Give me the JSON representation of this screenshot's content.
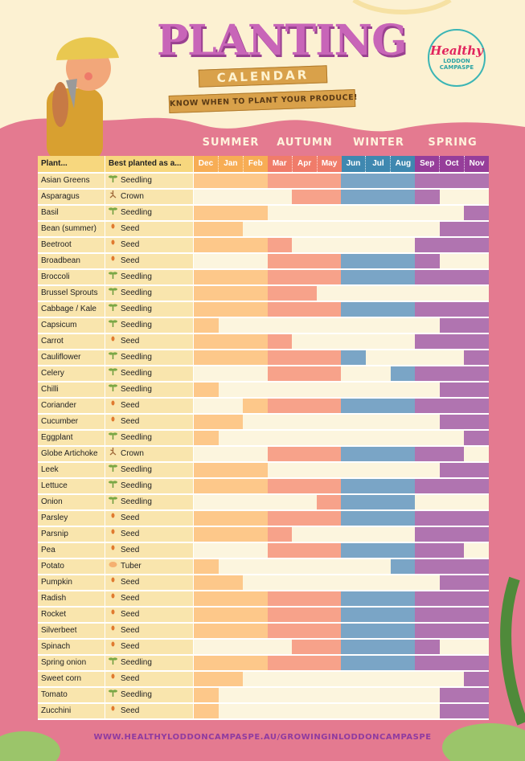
{
  "header": {
    "title": "PLANTING",
    "subtitle": "CALENDAR",
    "tagline": "KNOW WHEN TO PLANT YOUR PRODUCE!"
  },
  "logo": {
    "script": "Healthy",
    "line1": "LODDON",
    "line2": "CAMPASPE"
  },
  "table": {
    "col_plant": "Plant...",
    "col_type": "Best planted as a...",
    "seasons": [
      {
        "name": "SUMMER",
        "months": [
          "Dec",
          "Jan",
          "Feb"
        ],
        "header_color": "#f7ad55",
        "bar_color": "#fdc88a"
      },
      {
        "name": "AUTUMN",
        "months": [
          "Mar",
          "Apr",
          "May"
        ],
        "header_color": "#f07c6a",
        "bar_color": "#f7a28a"
      },
      {
        "name": "WINTER",
        "months": [
          "Jun",
          "Jul",
          "Aug"
        ],
        "header_color": "#3f88b0",
        "bar_color": "#7aa5c6"
      },
      {
        "name": "SPRING",
        "months": [
          "Sep",
          "Oct",
          "Nov"
        ],
        "header_color": "#963e9a",
        "bar_color": "#b074b0"
      }
    ],
    "type_icons": {
      "Seedling": "seedling-icon",
      "Seed": "seed-icon",
      "Crown": "crown-root-icon",
      "Tuber": "tuber-icon"
    },
    "plants": [
      {
        "name": "Asian Greens",
        "type": "Seedling",
        "months": [
          "Dec",
          "Jan",
          "Feb",
          "Mar",
          "Apr",
          "May",
          "Jun",
          "Jul",
          "Aug",
          "Sep",
          "Oct",
          "Nov"
        ]
      },
      {
        "name": "Asparagus",
        "type": "Crown",
        "months": [
          "Apr",
          "May",
          "Jun",
          "Jul",
          "Aug",
          "Sep"
        ]
      },
      {
        "name": "Basil",
        "type": "Seedling",
        "months": [
          "Dec",
          "Jan",
          "Feb",
          "Nov"
        ]
      },
      {
        "name": "Bean (summer)",
        "type": "Seed",
        "months": [
          "Dec",
          "Jan",
          "Oct",
          "Nov"
        ]
      },
      {
        "name": "Beetroot",
        "type": "Seed",
        "months": [
          "Dec",
          "Jan",
          "Feb",
          "Mar",
          "Sep",
          "Oct",
          "Nov"
        ]
      },
      {
        "name": "Broadbean",
        "type": "Seed",
        "months": [
          "Mar",
          "Apr",
          "May",
          "Jun",
          "Jul",
          "Aug",
          "Sep"
        ]
      },
      {
        "name": "Broccoli",
        "type": "Seedling",
        "months": [
          "Dec",
          "Jan",
          "Feb",
          "Mar",
          "Apr",
          "May",
          "Jun",
          "Jul",
          "Aug",
          "Sep",
          "Oct",
          "Nov"
        ]
      },
      {
        "name": "Brussel Sprouts",
        "type": "Seedling",
        "months": [
          "Dec",
          "Jan",
          "Feb",
          "Mar",
          "Apr"
        ]
      },
      {
        "name": "Cabbage / Kale",
        "type": "Seedling",
        "months": [
          "Dec",
          "Jan",
          "Feb",
          "Mar",
          "Apr",
          "May",
          "Jun",
          "Jul",
          "Aug",
          "Sep",
          "Oct",
          "Nov"
        ]
      },
      {
        "name": "Capsicum",
        "type": "Seedling",
        "months": [
          "Dec",
          "Oct",
          "Nov"
        ]
      },
      {
        "name": "Carrot",
        "type": "Seed",
        "months": [
          "Dec",
          "Jan",
          "Feb",
          "Mar",
          "Sep",
          "Oct",
          "Nov"
        ]
      },
      {
        "name": "Cauliflower",
        "type": "Seedling",
        "months": [
          "Dec",
          "Jan",
          "Feb",
          "Mar",
          "Apr",
          "May",
          "Jun",
          "Nov"
        ]
      },
      {
        "name": "Celery",
        "type": "Seedling",
        "months": [
          "Mar",
          "Apr",
          "May",
          "Aug",
          "Sep",
          "Oct",
          "Nov"
        ]
      },
      {
        "name": "Chilli",
        "type": "Seedling",
        "months": [
          "Dec",
          "Oct",
          "Nov"
        ]
      },
      {
        "name": "Coriander",
        "type": "Seed",
        "months": [
          "Feb",
          "Mar",
          "Apr",
          "May",
          "Jun",
          "Jul",
          "Aug",
          "Sep",
          "Oct",
          "Nov"
        ]
      },
      {
        "name": "Cucumber",
        "type": "Seed",
        "months": [
          "Dec",
          "Jan",
          "Oct",
          "Nov"
        ]
      },
      {
        "name": "Eggplant",
        "type": "Seedling",
        "months": [
          "Dec",
          "Nov"
        ]
      },
      {
        "name": "Globe Artichoke",
        "type": "Crown",
        "months": [
          "Mar",
          "Apr",
          "May",
          "Jun",
          "Jul",
          "Aug",
          "Sep",
          "Oct"
        ]
      },
      {
        "name": "Leek",
        "type": "Seedling",
        "months": [
          "Dec",
          "Jan",
          "Feb",
          "Oct",
          "Nov"
        ]
      },
      {
        "name": "Lettuce",
        "type": "Seedling",
        "months": [
          "Dec",
          "Jan",
          "Feb",
          "Mar",
          "Apr",
          "May",
          "Jun",
          "Jul",
          "Aug",
          "Sep",
          "Oct",
          "Nov"
        ]
      },
      {
        "name": "Onion",
        "type": "Seedling",
        "months": [
          "May",
          "Jun",
          "Jul",
          "Aug"
        ]
      },
      {
        "name": "Parsley",
        "type": "Seed",
        "months": [
          "Dec",
          "Jan",
          "Feb",
          "Mar",
          "Apr",
          "May",
          "Jun",
          "Jul",
          "Aug",
          "Sep",
          "Oct",
          "Nov"
        ]
      },
      {
        "name": "Parsnip",
        "type": "Seed",
        "months": [
          "Dec",
          "Jan",
          "Feb",
          "Mar",
          "Sep",
          "Oct",
          "Nov"
        ]
      },
      {
        "name": "Pea",
        "type": "Seed",
        "months": [
          "Mar",
          "Apr",
          "May",
          "Jun",
          "Jul",
          "Aug",
          "Sep",
          "Oct"
        ]
      },
      {
        "name": "Potato",
        "type": "Tuber",
        "months": [
          "Dec",
          "Aug",
          "Sep",
          "Oct",
          "Nov"
        ]
      },
      {
        "name": "Pumpkin",
        "type": "Seed",
        "months": [
          "Dec",
          "Jan",
          "Oct",
          "Nov"
        ]
      },
      {
        "name": "Radish",
        "type": "Seed",
        "months": [
          "Dec",
          "Jan",
          "Feb",
          "Mar",
          "Apr",
          "May",
          "Jun",
          "Jul",
          "Aug",
          "Sep",
          "Oct",
          "Nov"
        ]
      },
      {
        "name": "Rocket",
        "type": "Seed",
        "months": [
          "Dec",
          "Jan",
          "Feb",
          "Mar",
          "Apr",
          "May",
          "Jun",
          "Jul",
          "Aug",
          "Sep",
          "Oct",
          "Nov"
        ]
      },
      {
        "name": "Silverbeet",
        "type": "Seed",
        "months": [
          "Dec",
          "Jan",
          "Feb",
          "Mar",
          "Apr",
          "May",
          "Jun",
          "Jul",
          "Aug",
          "Sep",
          "Oct",
          "Nov"
        ]
      },
      {
        "name": "Spinach",
        "type": "Seed",
        "months": [
          "Apr",
          "May",
          "Jun",
          "Jul",
          "Aug",
          "Sep"
        ]
      },
      {
        "name": "Spring onion",
        "type": "Seedling",
        "months": [
          "Dec",
          "Jan",
          "Feb",
          "Mar",
          "Apr",
          "May",
          "Jun",
          "Jul",
          "Aug",
          "Sep",
          "Oct",
          "Nov"
        ]
      },
      {
        "name": "Sweet corn",
        "type": "Seed",
        "months": [
          "Dec",
          "Jan",
          "Nov"
        ]
      },
      {
        "name": "Tomato",
        "type": "Seedling",
        "months": [
          "Dec",
          "Oct",
          "Nov"
        ]
      },
      {
        "name": "Zucchini",
        "type": "Seed",
        "months": [
          "Dec",
          "Oct",
          "Nov"
        ]
      }
    ]
  },
  "footer": {
    "url": "WWW.HEALTHYLODDONCAMPASPE.AU/GROWINGINLODDONCAMPASPE"
  }
}
